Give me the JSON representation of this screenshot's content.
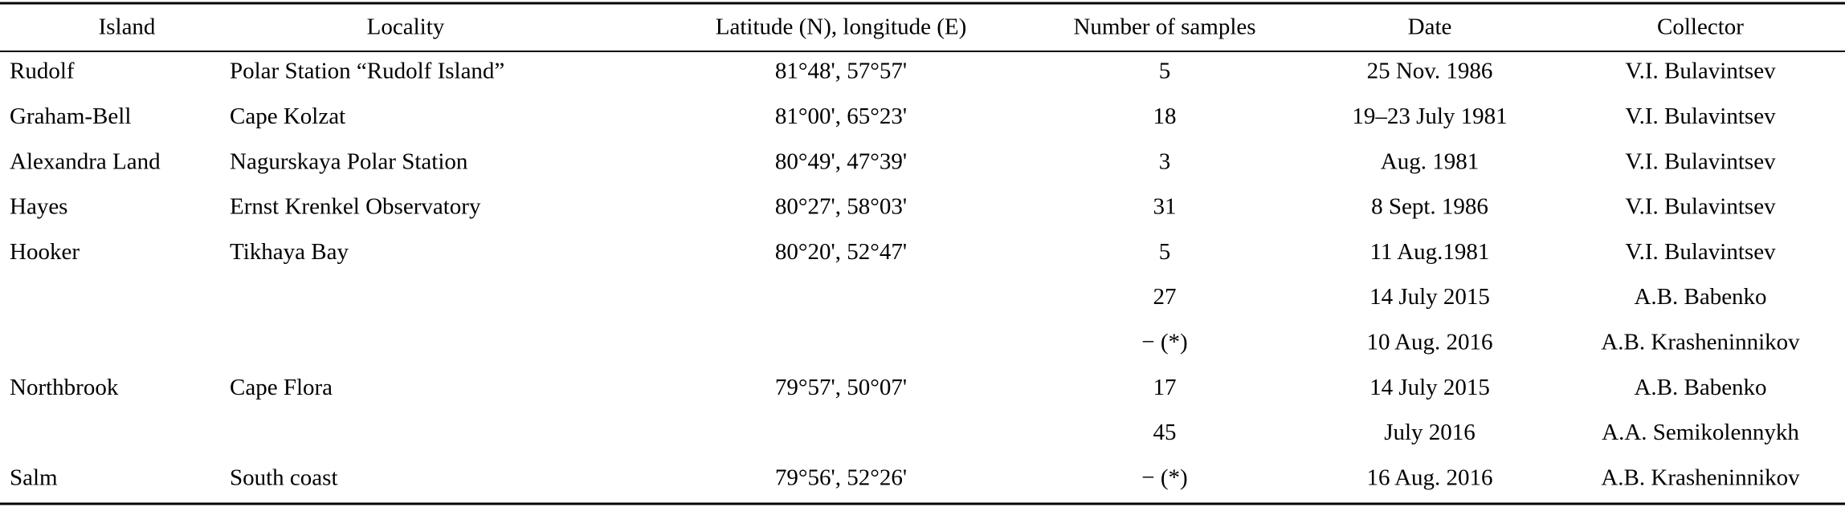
{
  "table": {
    "header": [
      "Island",
      "Locality",
      "Latitude (N), longitude (E)",
      "Number of samples",
      "Date",
      "Collector"
    ],
    "rows": [
      [
        "Rudolf",
        "Polar Station “Rudolf Island”",
        "81°48', 57°57'",
        5,
        "25 Nov. 1986",
        "V.I. Bulavintsev"
      ],
      [
        "Graham-Bell",
        "Cape Kolzat",
        "81°00', 65°23'",
        18,
        "19–23 July 1981",
        "V.I. Bulavintsev"
      ],
      [
        "Alexandra Land",
        "Nagurskaya Polar Station",
        "80°49', 47°39'",
        3,
        "Aug. 1981",
        "V.I. Bulavintsev"
      ],
      [
        "Hayes",
        "Ernst Krenkel Observatory",
        "80°27', 58°03'",
        31,
        "8 Sept. 1986",
        "V.I. Bulavintsev"
      ],
      [
        "Hooker",
        "Tikhaya Bay",
        "80°20', 52°47'",
        5,
        "11 Aug.1981",
        "V.I. Bulavintsev"
      ],
      [
        null,
        null,
        null,
        27,
        "14 July 2015",
        "A.B. Babenko"
      ],
      [
        null,
        null,
        null,
        "− (*)",
        "10 Aug. 2016",
        "A.B. Krasheninnikov"
      ],
      [
        "Northbrook",
        "Cape Flora",
        "79°57', 50°07'",
        17,
        "14 July 2015",
        "A.B. Babenko"
      ],
      [
        null,
        null,
        null,
        45,
        "July 2016",
        "A.A. Semikolennykh"
      ],
      [
        "Salm",
        "South coast",
        "79°56', 52°26'",
        "− (*)",
        "16 Aug. 2016",
        "A.B. Krasheninnikov"
      ]
    ]
  }
}
